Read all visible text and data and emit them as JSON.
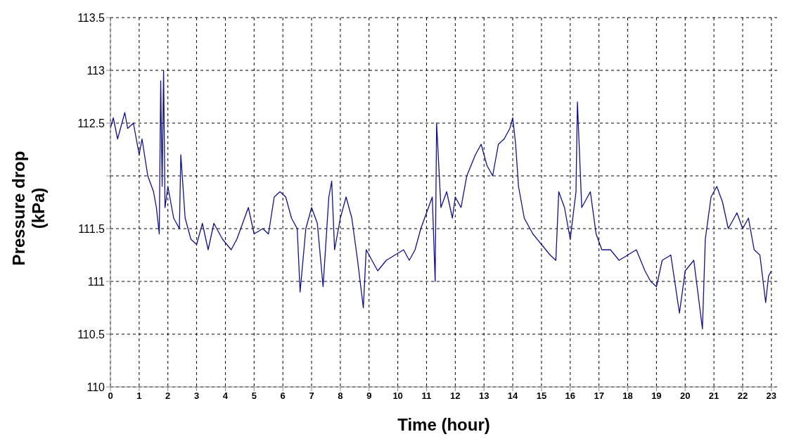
{
  "chart_data": {
    "type": "line",
    "xlabel": "Time (hour)",
    "ylabel": "Pressure drop (kPa)",
    "xlim": [
      0,
      23.2
    ],
    "xticks": [
      0,
      1,
      2,
      3,
      4,
      5,
      6,
      7,
      8,
      9,
      10,
      11,
      12,
      13,
      14,
      15,
      16,
      17,
      18,
      19,
      20,
      21,
      22,
      23
    ],
    "ylim": [
      110,
      113.5
    ],
    "yticks": [
      110,
      110.5,
      111,
      111.5,
      {
        "value": 112,
        "label": null
      },
      112.5,
      113,
      113.5
    ],
    "grid": true,
    "line_style": "solid",
    "series": [
      {
        "color": "#10108a",
        "x": [
          0,
          0.1,
          0.25,
          0.4,
          0.5,
          0.6,
          0.8,
          1.0,
          1.1,
          1.3,
          1.5,
          1.6,
          1.7,
          1.75,
          1.8,
          1.85,
          1.9,
          2.0,
          2.2,
          2.4,
          2.45,
          2.6,
          2.8,
          3.0,
          3.2,
          3.4,
          3.6,
          3.9,
          4.2,
          4.4,
          4.6,
          4.8,
          5.0,
          5.3,
          5.5,
          5.7,
          5.9,
          6.1,
          6.3,
          6.5,
          6.6,
          6.8,
          7.0,
          7.2,
          7.4,
          7.6,
          7.7,
          7.8,
          8.0,
          8.2,
          8.4,
          8.6,
          8.8,
          8.9,
          9.1,
          9.3,
          9.6,
          9.9,
          10.2,
          10.4,
          10.6,
          10.8,
          11.0,
          11.2,
          11.3,
          11.35,
          11.5,
          11.7,
          11.9,
          12.0,
          12.2,
          12.4,
          12.7,
          12.9,
          13.1,
          13.3,
          13.5,
          13.7,
          13.9,
          14.0,
          14.1,
          14.2,
          14.4,
          14.7,
          15.0,
          15.3,
          15.5,
          15.6,
          15.8,
          16.0,
          16.2,
          16.25,
          16.4,
          16.7,
          16.9,
          17.1,
          17.4,
          17.7,
          18.0,
          18.3,
          18.6,
          18.8,
          19.0,
          19.2,
          19.5,
          19.8,
          20.0,
          20.3,
          20.6,
          20.7,
          20.9,
          21.1,
          21.3,
          21.5,
          21.8,
          22.0,
          22.2,
          22.4,
          22.6,
          22.8,
          22.9,
          23.0
        ],
        "values": [
          112.45,
          112.55,
          112.35,
          112.5,
          112.6,
          112.45,
          112.5,
          112.2,
          112.35,
          112.0,
          111.85,
          111.7,
          111.45,
          112.9,
          111.9,
          113.0,
          111.7,
          111.9,
          111.6,
          111.5,
          112.2,
          111.6,
          111.4,
          111.35,
          111.55,
          111.3,
          111.55,
          111.4,
          111.3,
          111.4,
          111.55,
          111.7,
          111.45,
          111.5,
          111.45,
          111.8,
          111.85,
          111.8,
          111.6,
          111.5,
          110.9,
          111.5,
          111.7,
          111.55,
          110.95,
          111.8,
          111.95,
          111.3,
          111.6,
          111.8,
          111.6,
          111.2,
          110.75,
          111.3,
          111.2,
          111.1,
          111.2,
          111.25,
          111.3,
          111.2,
          111.3,
          111.5,
          111.65,
          111.8,
          111.0,
          112.5,
          111.7,
          111.85,
          111.6,
          111.8,
          111.7,
          112.0,
          112.2,
          112.3,
          112.1,
          112.0,
          112.3,
          112.35,
          112.45,
          112.55,
          112.3,
          111.9,
          111.6,
          111.45,
          111.35,
          111.25,
          111.2,
          111.85,
          111.7,
          111.4,
          111.85,
          112.7,
          111.7,
          111.85,
          111.45,
          111.3,
          111.3,
          111.2,
          111.25,
          111.3,
          111.1,
          111.0,
          110.95,
          111.2,
          111.25,
          110.7,
          111.1,
          111.2,
          110.55,
          111.4,
          111.8,
          111.9,
          111.75,
          111.5,
          111.65,
          111.5,
          111.6,
          111.3,
          111.25,
          110.8,
          111.05,
          111.1
        ]
      }
    ]
  }
}
